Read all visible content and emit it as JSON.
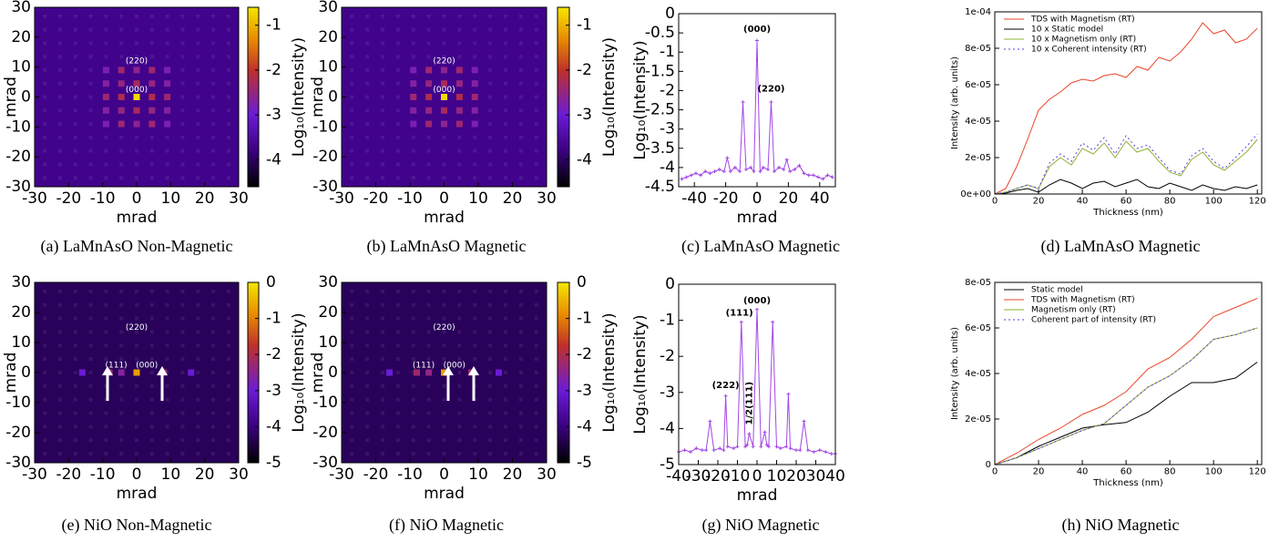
{
  "chart_data": [
    {
      "type": "heatmap",
      "caption": "(a) LaMnAsO Non-Magnetic",
      "xlabel": "mrad",
      "ylabel": "mrad",
      "colorbar_label": "Log₁₀(Intensity)",
      "xlim": [
        -30,
        30
      ],
      "ylim": [
        -30,
        30
      ],
      "xticks": [
        -30,
        -20,
        -10,
        0,
        10,
        20,
        30
      ],
      "yticks": [
        -30,
        -20,
        -10,
        0,
        10,
        20,
        30
      ],
      "clim": [
        -4.6,
        -0.6
      ],
      "cticks": [
        -1,
        -2,
        -3,
        -4
      ],
      "background_value": -3.7,
      "annotations": [
        "(220)",
        "(000)"
      ],
      "spots": {
        "x": [
          -9,
          -4.5,
          0,
          4.5,
          9,
          -9,
          -4.5,
          0,
          4.5,
          9,
          -9,
          -4.5,
          0,
          4.5,
          9,
          -9,
          -4.5,
          0,
          4.5,
          9,
          -9,
          -4.5,
          0,
          4.5,
          9
        ],
        "y": [
          9,
          9,
          9,
          9,
          9,
          4.5,
          4.5,
          4.5,
          4.5,
          4.5,
          0,
          0,
          0,
          0,
          0,
          -4.5,
          -4.5,
          -4.5,
          -4.5,
          -4.5,
          -9,
          -9,
          -9,
          -9,
          -9
        ],
        "values": [
          -2.8,
          -2.4,
          -2.6,
          -2.4,
          -2.8,
          -2.7,
          -2.5,
          -2.3,
          -2.5,
          -2.7,
          -2.4,
          -2.2,
          -0.7,
          -2.2,
          -2.4,
          -2.7,
          -2.5,
          -2.3,
          -2.5,
          -2.7,
          -2.8,
          -2.4,
          -2.6,
          -2.4,
          -2.8
        ]
      }
    },
    {
      "type": "heatmap",
      "caption": "(b) LaMnAsO Magnetic",
      "xlabel": "mrad",
      "ylabel": "mrad",
      "colorbar_label": "Log₁₀(Intensity)",
      "xlim": [
        -30,
        30
      ],
      "ylim": [
        -30,
        30
      ],
      "xticks": [
        -30,
        -20,
        -10,
        0,
        10,
        20,
        30
      ],
      "yticks": [
        -30,
        -20,
        -10,
        0,
        10,
        20,
        30
      ],
      "clim": [
        -4.6,
        -0.6
      ],
      "cticks": [
        -1,
        -2,
        -3,
        -4
      ],
      "background_value": -3.7,
      "annotations": [
        "(220)",
        "(000)"
      ],
      "spots": {
        "x": [
          -9,
          -4.5,
          0,
          4.5,
          9,
          -9,
          -4.5,
          0,
          4.5,
          9,
          -9,
          -4.5,
          0,
          4.5,
          9,
          -9,
          -4.5,
          0,
          4.5,
          9,
          -9,
          -4.5,
          0,
          4.5,
          9
        ],
        "y": [
          9,
          9,
          9,
          9,
          9,
          4.5,
          4.5,
          4.5,
          4.5,
          4.5,
          0,
          0,
          0,
          0,
          0,
          -4.5,
          -4.5,
          -4.5,
          -4.5,
          -4.5,
          -9,
          -9,
          -9,
          -9,
          -9
        ],
        "values": [
          -2.8,
          -2.4,
          -2.6,
          -2.4,
          -2.8,
          -2.7,
          -2.5,
          -2.3,
          -2.5,
          -2.7,
          -2.4,
          -2.2,
          -0.7,
          -2.2,
          -2.4,
          -2.7,
          -2.5,
          -2.3,
          -2.5,
          -2.7,
          -2.8,
          -2.4,
          -2.6,
          -2.4,
          -2.8
        ]
      }
    },
    {
      "type": "line",
      "caption": "(c) LaMnAsO Magnetic",
      "xlabel": "mrad",
      "ylabel": "Log₁₀(Intensity)",
      "color": "#a347e6",
      "markers": true,
      "xlim": [
        -50,
        50
      ],
      "ylim": [
        -4.5,
        0
      ],
      "xticks": [
        -40,
        -20,
        0,
        20,
        40
      ],
      "yticks": [
        0,
        -0.5,
        -1,
        -1.5,
        -2,
        -2.5,
        -3,
        -3.5,
        -4,
        -4.5
      ],
      "annotations": [
        "(000)",
        "(220)"
      ],
      "x": [
        -48,
        -45,
        -42,
        -39,
        -36,
        -33,
        -30,
        -27,
        -24,
        -21,
        -19,
        -17,
        -14,
        -11,
        -9,
        -7,
        -4,
        -2,
        0,
        2,
        4,
        7,
        9,
        11,
        14,
        17,
        19,
        21,
        24,
        27,
        30,
        33,
        36,
        39,
        42,
        45,
        48
      ],
      "values": [
        -4.3,
        -4.25,
        -4.2,
        -4.15,
        -4.2,
        -4.1,
        -4.15,
        -4.1,
        -4.05,
        -4.1,
        -3.75,
        -4.1,
        -4.0,
        -4.1,
        -2.3,
        -4.05,
        -4.0,
        -4.1,
        -0.7,
        -4.1,
        -4.0,
        -4.05,
        -2.3,
        -4.1,
        -4.0,
        -4.05,
        -3.8,
        -4.1,
        -4.05,
        -3.95,
        -4.15,
        -4.2,
        -4.2,
        -4.25,
        -4.3,
        -4.2,
        -4.25
      ]
    },
    {
      "type": "line",
      "caption": "(d) LaMnAsO Magnetic",
      "xlabel": "Thickness (nm)",
      "ylabel": "Intensity (arb. units)",
      "legend": "upper left",
      "xlim": [
        0,
        122
      ],
      "ylim": [
        0,
        0.0001
      ],
      "xticks": [
        0,
        20,
        40,
        60,
        80,
        100,
        120
      ],
      "yticks": [
        {
          "value": 0,
          "label": "0e+00"
        },
        {
          "value": 2e-05,
          "label": "2e-05"
        },
        {
          "value": 4e-05,
          "label": "4e-05"
        },
        {
          "value": 6e-05,
          "label": "6e-05"
        },
        {
          "value": 8e-05,
          "label": "8e-05"
        },
        {
          "value": 0.0001,
          "label": "1e-04"
        }
      ],
      "x": [
        0,
        5,
        10,
        15,
        20,
        25,
        30,
        35,
        40,
        45,
        50,
        55,
        60,
        65,
        70,
        75,
        80,
        85,
        90,
        95,
        100,
        105,
        110,
        115,
        120
      ],
      "series": [
        {
          "name": "TDS with Magnetism (RT)",
          "color": "#e8462a",
          "dotted": false,
          "values": [
            0,
            3e-06,
            1.5e-05,
            3e-05,
            4.6e-05,
            5.2e-05,
            5.6e-05,
            6.1e-05,
            6.3e-05,
            6.2e-05,
            6.5e-05,
            6.6e-05,
            6.4e-05,
            7e-05,
            6.8e-05,
            7.5e-05,
            7.3e-05,
            7.8e-05,
            8.5e-05,
            9.4e-05,
            8.8e-05,
            9e-05,
            8.3e-05,
            8.5e-05,
            9.1e-05
          ]
        },
        {
          "name": "10 x Static model",
          "color": "#000000",
          "dotted": false,
          "values": [
            0,
            5e-07,
            2e-06,
            3e-06,
            1e-06,
            5e-06,
            8e-06,
            6e-06,
            3e-06,
            6e-06,
            7e-06,
            4e-06,
            6e-06,
            8e-06,
            4e-06,
            3e-06,
            6e-06,
            4e-06,
            2e-06,
            5e-06,
            3e-06,
            2e-06,
            4e-06,
            3e-06,
            5e-06
          ]
        },
        {
          "name": "10 x Magnetism only (RT)",
          "color": "#8db336",
          "dotted": false,
          "values": [
            0,
            1e-06,
            3e-06,
            5e-06,
            3e-06,
            1.5e-05,
            2e-05,
            1.6e-05,
            2.5e-05,
            2.2e-05,
            2.8e-05,
            2e-05,
            2.9e-05,
            2.3e-05,
            2.5e-05,
            1.8e-05,
            1.2e-05,
            1e-05,
            1.9e-05,
            2.3e-05,
            1.6e-05,
            1.3e-05,
            1.8e-05,
            2.3e-05,
            3e-05
          ]
        },
        {
          "name": "10 x Coherent intensity (RT)",
          "color": "#5a3de0",
          "dotted": true,
          "values": [
            0,
            1e-06,
            3e-06,
            5e-06,
            3e-06,
            1.7e-05,
            2.2e-05,
            1.8e-05,
            2.8e-05,
            2.4e-05,
            3.1e-05,
            2.2e-05,
            3.2e-05,
            2.5e-05,
            2.7e-05,
            2e-05,
            1.3e-05,
            1.1e-05,
            2.1e-05,
            2.5e-05,
            1.8e-05,
            1.4e-05,
            2e-05,
            2.6e-05,
            3.3e-05
          ]
        }
      ]
    },
    {
      "type": "heatmap",
      "caption": "(e) NiO Non-Magnetic",
      "xlabel": "mrad",
      "ylabel": "mrad",
      "colorbar_label": "Log₁₀(Intensity)",
      "xlim": [
        -30,
        30
      ],
      "ylim": [
        -30,
        30
      ],
      "xticks": [
        -30,
        -20,
        -10,
        0,
        10,
        20,
        30
      ],
      "yticks": [
        -30,
        -20,
        -10,
        0,
        10,
        20,
        30
      ],
      "clim": [
        -5,
        0
      ],
      "cticks": [
        0,
        -1,
        -2,
        -3,
        -4,
        -5
      ],
      "background_value": -4.3,
      "annotations": [
        "(220)",
        "(111)",
        "(000)"
      ],
      "spots": {
        "x": [
          -16,
          -8,
          -4.5,
          0,
          8,
          16
        ],
        "y": [
          0,
          0,
          0,
          0,
          0,
          0
        ],
        "values": [
          -3.0,
          -2.2,
          -2.6,
          -0.7,
          -2.2,
          -3.0
        ]
      }
    },
    {
      "type": "heatmap",
      "caption": "(f) NiO Magnetic",
      "xlabel": "mrad",
      "ylabel": "mrad",
      "colorbar_label": "Log₁₀(Intensity)",
      "xlim": [
        -30,
        30
      ],
      "ylim": [
        -30,
        30
      ],
      "xticks": [
        -30,
        -20,
        -10,
        0,
        10,
        20,
        30
      ],
      "yticks": [
        -30,
        -20,
        -10,
        0,
        10,
        20,
        30
      ],
      "clim": [
        -5,
        0
      ],
      "cticks": [
        0,
        -1,
        -2,
        -3,
        -4,
        -5
      ],
      "background_value": -4.3,
      "annotations": [
        "(220)",
        "(111)",
        "(000)"
      ],
      "spots": {
        "x": [
          -16,
          -8,
          -4.5,
          0,
          8,
          16
        ],
        "y": [
          0,
          0,
          0,
          0,
          0,
          0
        ],
        "values": [
          -3.0,
          -2.2,
          -2.4,
          -0.7,
          -2.2,
          -3.0
        ]
      }
    },
    {
      "type": "line",
      "caption": "(g) NiO Magnetic",
      "xlabel": "mrad",
      "ylabel": "Log₁₀(Intensity)",
      "color": "#a347e6",
      "markers": true,
      "xlim": [
        -40,
        40
      ],
      "ylim": [
        -5,
        0
      ],
      "xticks": [
        -40,
        -30,
        -20,
        -10,
        0,
        10,
        20,
        30,
        40
      ],
      "yticks": [
        0,
        -1,
        -2,
        -3,
        -4,
        -5
      ],
      "annotations": [
        "(000)",
        "(111)",
        "(222)",
        "1/2(111)"
      ],
      "x": [
        -40,
        -37,
        -34,
        -31,
        -28,
        -26,
        -24,
        -22,
        -19,
        -17,
        -16,
        -15,
        -12,
        -10,
        -8,
        -6,
        -5,
        -4,
        -2,
        0,
        2,
        4,
        5,
        6,
        8,
        10,
        12,
        15,
        16,
        17,
        20,
        22,
        24,
        26,
        29,
        32,
        35,
        38,
        40
      ],
      "values": [
        -4.65,
        -4.6,
        -4.65,
        -4.55,
        -4.6,
        -4.6,
        -3.8,
        -4.6,
        -4.55,
        -4.6,
        -3.1,
        -4.5,
        -4.55,
        -4.5,
        -1.05,
        -4.5,
        -4.45,
        -4.15,
        -4.5,
        -0.7,
        -4.5,
        -4.1,
        -4.45,
        -4.5,
        -1.05,
        -4.5,
        -4.55,
        -4.5,
        -3.05,
        -4.55,
        -4.6,
        -4.6,
        -3.8,
        -4.6,
        -4.65,
        -4.6,
        -4.65,
        -4.7,
        -4.7
      ]
    },
    {
      "type": "line",
      "caption": "(h) NiO Magnetic",
      "xlabel": "Thickness (nm)",
      "ylabel": "Intensity (arb. units)",
      "legend": "upper left",
      "xlim": [
        0,
        122
      ],
      "ylim": [
        0,
        8e-05
      ],
      "xticks": [
        0,
        20,
        40,
        60,
        80,
        100,
        120
      ],
      "yticks": [
        0,
        {
          "value": 2e-05,
          "label": "2e-05"
        },
        {
          "value": 4e-05,
          "label": "4e-05"
        },
        {
          "value": 6e-05,
          "label": "6e-05"
        },
        {
          "value": 8e-05,
          "label": "8e-05"
        }
      ],
      "x": [
        0,
        10,
        20,
        30,
        40,
        50,
        60,
        70,
        80,
        90,
        100,
        110,
        120
      ],
      "series": [
        {
          "name": "Static model",
          "color": "#000000",
          "dotted": false,
          "values": [
            0,
            3e-06,
            8e-06,
            1.2e-05,
            1.6e-05,
            1.75e-05,
            1.85e-05,
            2.3e-05,
            3e-05,
            3.6e-05,
            3.6e-05,
            3.8e-05,
            4.5e-05
          ]
        },
        {
          "name": "TDS with Magnetism (RT)",
          "color": "#e8462a",
          "dotted": false,
          "values": [
            0,
            5e-06,
            1.1e-05,
            1.6e-05,
            2.2e-05,
            2.6e-05,
            3.2e-05,
            4.2e-05,
            4.7e-05,
            5.5e-05,
            6.5e-05,
            6.9e-05,
            7.3e-05
          ]
        },
        {
          "name": "Magnetism only (RT)",
          "color": "#8db336",
          "dotted": false,
          "values": [
            0,
            3e-06,
            7e-06,
            1.1e-05,
            1.5e-05,
            1.8e-05,
            2.6e-05,
            3.4e-05,
            3.9e-05,
            4.6e-05,
            5.5e-05,
            5.7e-05,
            6e-05
          ]
        },
        {
          "name": "Coherent part of intensity (RT)",
          "color": "#5a3de0",
          "dotted": true,
          "values": [
            0,
            3e-06,
            7e-06,
            1.1e-05,
            1.5e-05,
            1.8e-05,
            2.6e-05,
            3.4e-05,
            3.9e-05,
            4.6e-05,
            5.5e-05,
            5.7e-05,
            6e-05
          ]
        }
      ]
    }
  ]
}
